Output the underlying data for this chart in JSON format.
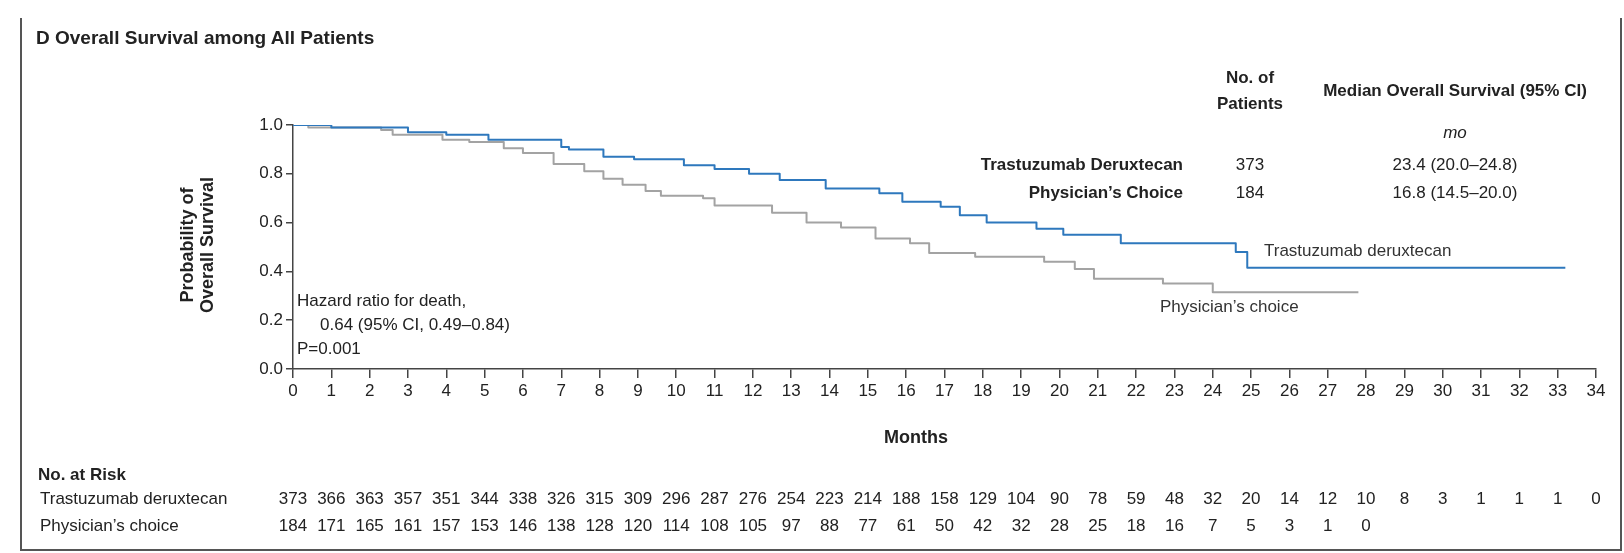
{
  "chart_data": {
    "type": "step",
    "title": "D  Overall Survival among All Patients",
    "xlabel": "Months",
    "ylabel": "Probability of Overall Survival",
    "xlim": [
      0,
      34
    ],
    "xticks": [
      0,
      1,
      2,
      3,
      4,
      5,
      6,
      7,
      8,
      9,
      10,
      11,
      12,
      13,
      14,
      15,
      16,
      17,
      18,
      19,
      20,
      21,
      22,
      23,
      24,
      25,
      26,
      27,
      28,
      29,
      30,
      31,
      32,
      33,
      34
    ],
    "ylim": [
      0,
      1
    ],
    "yticks": [
      {
        "value": 0,
        "label": "0.0"
      },
      {
        "value": 0.2,
        "label": "0.2"
      },
      {
        "value": 0.4,
        "label": "0.4"
      },
      {
        "value": 0.6,
        "label": "0.6"
      },
      {
        "value": 0.8,
        "label": "0.8"
      },
      {
        "value": 1,
        "label": "1.0"
      }
    ],
    "grid": false,
    "legend": false,
    "marker": "none",
    "line_style": "solid",
    "series": [
      {
        "name": "Trastuzumab deruxtecan",
        "color": "#2e78bd",
        "x": [
          0,
          1,
          3,
          4,
          5.1,
          7,
          7.2,
          8.1,
          8.9,
          10.2,
          11,
          11.9,
          12.7,
          13.9,
          15.3,
          15.9,
          16.9,
          17.4,
          18.1,
          19.4,
          20.1,
          21.6,
          24.6,
          24.9,
          33.2
        ],
        "values": [
          1,
          0.99,
          0.97,
          0.96,
          0.94,
          0.91,
          0.9,
          0.87,
          0.86,
          0.835,
          0.82,
          0.8,
          0.775,
          0.74,
          0.72,
          0.685,
          0.665,
          0.63,
          0.6,
          0.575,
          0.55,
          0.515,
          0.48,
          0.415,
          0.415
        ]
      },
      {
        "name": "Physician’s choice",
        "color": "#a3a3a3",
        "x": [
          0,
          0.4,
          2.3,
          2.6,
          3.9,
          4.6,
          5.5,
          6,
          6.8,
          7.6,
          8.1,
          8.6,
          9.2,
          9.6,
          10.7,
          11,
          12.5,
          13.4,
          14.3,
          15.2,
          16.1,
          16.6,
          17.8,
          19.6,
          20.4,
          20.9,
          22.7,
          24,
          27.8
        ],
        "values": [
          1,
          0.99,
          0.98,
          0.96,
          0.94,
          0.93,
          0.905,
          0.885,
          0.84,
          0.81,
          0.78,
          0.755,
          0.73,
          0.71,
          0.7,
          0.67,
          0.64,
          0.6,
          0.58,
          0.535,
          0.515,
          0.475,
          0.46,
          0.44,
          0.41,
          0.37,
          0.35,
          0.315,
          0.315
        ]
      }
    ],
    "annotations": [
      "No. of Patients",
      "Median Overall Survival (95% CI)",
      "mo",
      "Trastuzumab Deruxtecan",
      "373",
      "23.4 (20.0–24.8)",
      "Physician’s Choice",
      "184",
      "16.8 (14.5–20.0)",
      "Hazard ratio for death,",
      "0.64 (95% CI, 0.49–0.84)",
      "P=0.001",
      "No. at Risk",
      "Trastuzumab deruxtecan 373 366 363 357 351 344 338 326 315 309 296 287 276 254 223 214 188 158 129 104 90 78 59 48 32 20 14 12 10 8 3 1 1 1 0",
      "Physician’s choice 184 171 165 161 157 153 146 138 128 120 114 108 105 97 88 77 61 50 42 32 28 25 18 16 7 5 3 1 0"
    ]
  }
}
